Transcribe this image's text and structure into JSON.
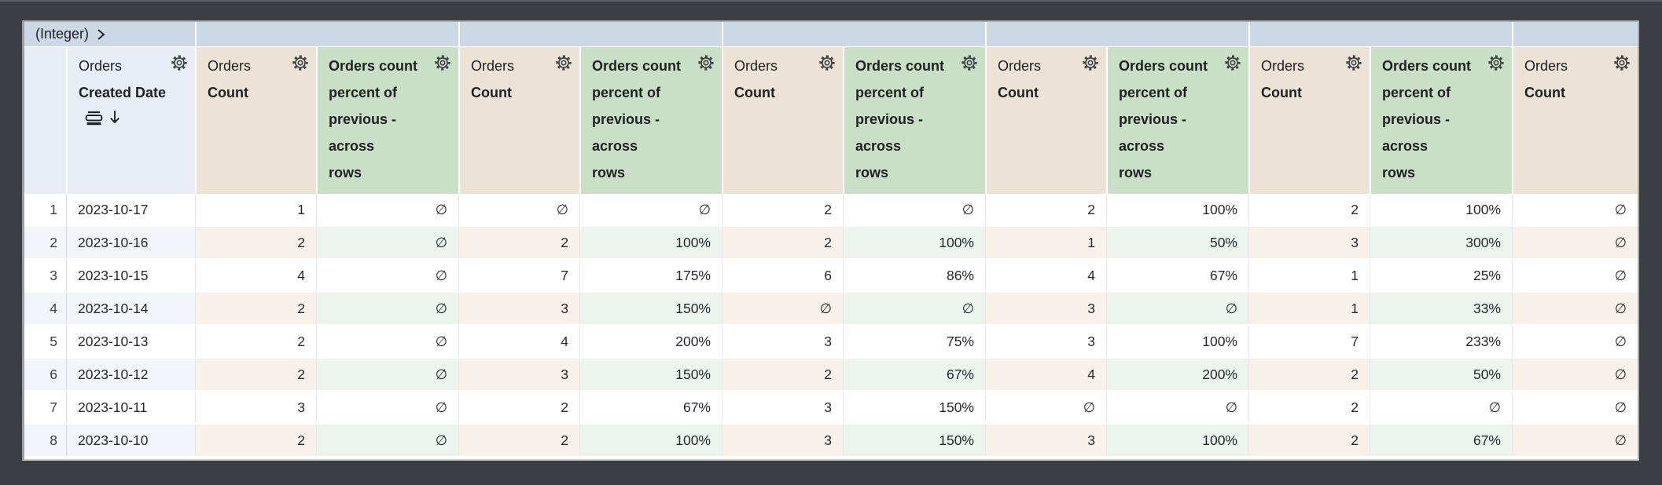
{
  "pivot_bar": {
    "label": "(Integer)",
    "group_count": 6
  },
  "table": {
    "null_symbol": "∅",
    "columns": [
      {
        "kind": "rownum"
      },
      {
        "kind": "dim"
      },
      {
        "kind": "count"
      },
      {
        "kind": "pct"
      },
      {
        "kind": "count"
      },
      {
        "kind": "pct"
      },
      {
        "kind": "count"
      },
      {
        "kind": "pct"
      },
      {
        "kind": "count"
      },
      {
        "kind": "pct"
      },
      {
        "kind": "count"
      },
      {
        "kind": "pct"
      },
      {
        "kind": "count"
      }
    ],
    "headers": {
      "dimension": {
        "view": "Orders",
        "field": "Created Date"
      },
      "measure": {
        "view": "Orders",
        "field": "Count"
      },
      "calc": {
        "label": "Orders count percent of previous - across rows",
        "label_lines": [
          "Orders count",
          "percent of",
          "previous -",
          "across",
          "rows"
        ]
      }
    },
    "rows": [
      {
        "num": "1",
        "date": "2023-10-17",
        "values": [
          "1",
          "∅",
          "∅",
          "∅",
          "2",
          "∅",
          "2",
          "100%",
          "2",
          "100%",
          "∅"
        ]
      },
      {
        "num": "2",
        "date": "2023-10-16",
        "values": [
          "2",
          "∅",
          "2",
          "100%",
          "2",
          "100%",
          "1",
          "50%",
          "3",
          "300%",
          "∅"
        ]
      },
      {
        "num": "3",
        "date": "2023-10-15",
        "values": [
          "4",
          "∅",
          "7",
          "175%",
          "6",
          "86%",
          "4",
          "67%",
          "1",
          "25%",
          "∅"
        ]
      },
      {
        "num": "4",
        "date": "2023-10-14",
        "values": [
          "2",
          "∅",
          "3",
          "150%",
          "∅",
          "∅",
          "3",
          "∅",
          "1",
          "33%",
          "∅"
        ]
      },
      {
        "num": "5",
        "date": "2023-10-13",
        "values": [
          "2",
          "∅",
          "4",
          "200%",
          "3",
          "75%",
          "3",
          "100%",
          "7",
          "233%",
          "∅"
        ]
      },
      {
        "num": "6",
        "date": "2023-10-12",
        "values": [
          "2",
          "∅",
          "3",
          "150%",
          "2",
          "67%",
          "4",
          "200%",
          "2",
          "50%",
          "∅"
        ]
      },
      {
        "num": "7",
        "date": "2023-10-11",
        "values": [
          "3",
          "∅",
          "2",
          "67%",
          "3",
          "150%",
          "∅",
          "∅",
          "2",
          "∅",
          "∅"
        ]
      },
      {
        "num": "8",
        "date": "2023-10-10",
        "values": [
          "2",
          "∅",
          "2",
          "100%",
          "3",
          "150%",
          "3",
          "100%",
          "2",
          "67%",
          "∅"
        ]
      }
    ]
  },
  "colors": {
    "background": "#3b3f44",
    "pivot_band": "#cdd8e6",
    "dimension_header": "#e9eef6",
    "measure_header": "#ece2d6",
    "calc_header": "#c9dfc6",
    "even_row_dim": "#f2f5fa",
    "even_row_measure": "#f8f1eb",
    "even_row_calc": "#edf4ee",
    "text": "#202124"
  }
}
